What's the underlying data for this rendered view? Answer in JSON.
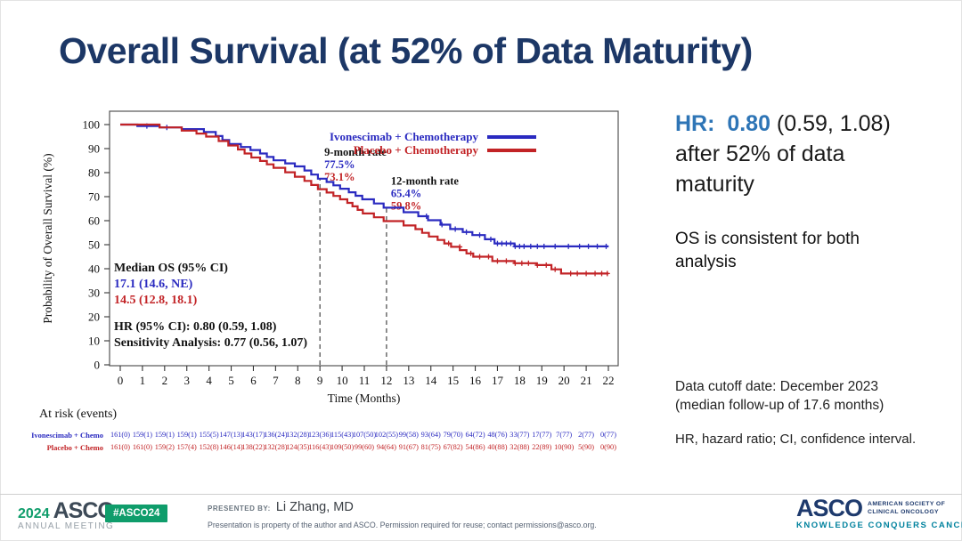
{
  "slide": {
    "title": "Overall Survival (at 52% of Data Maturity)"
  },
  "chart_data": {
    "type": "line",
    "variant": "kaplan-meier-step",
    "xlabel": "Time (Months)",
    "ylabel": "Probability of Overall Survival (%)",
    "xlim": [
      0,
      22
    ],
    "ylim": [
      0,
      100
    ],
    "x_ticks": [
      0,
      1,
      2,
      3,
      4,
      5,
      6,
      7,
      8,
      9,
      10,
      11,
      12,
      13,
      14,
      15,
      16,
      17,
      18,
      19,
      20,
      21,
      22
    ],
    "y_ticks": [
      0,
      10,
      20,
      30,
      40,
      50,
      60,
      70,
      80,
      90,
      100
    ],
    "grid": false,
    "legend_position": "top-right-inside",
    "months": [
      0,
      1,
      2,
      3,
      4,
      5,
      6,
      7,
      8,
      9,
      10,
      11,
      12,
      13,
      14,
      15,
      16,
      17,
      18,
      19,
      20,
      21,
      22
    ],
    "series": [
      {
        "name": "Ivonescimab + Chemotherapy",
        "color": "#2a2ac0",
        "survival_pct": [
          100,
          99.4,
          98.8,
          98.1,
          96.9,
          91.9,
          89.4,
          85.1,
          82.6,
          77.5,
          73.3,
          68.9,
          65.4,
          63.5,
          60.2,
          56.5,
          54.0,
          50.5,
          49.3,
          49.3,
          49.3,
          49.3,
          49.3
        ],
        "censor_times": [
          1.2,
          2.1,
          13.8,
          14.5,
          15.1,
          15.6,
          16.2,
          16.7,
          17.0,
          17.2,
          17.4,
          17.6,
          17.8,
          18.0,
          18.2,
          18.5,
          18.8,
          19.1,
          19.6,
          20.2,
          20.7,
          21.1,
          21.5,
          21.9
        ]
      },
      {
        "name": "Placebo + Chemotherapy",
        "color": "#c22326",
        "survival_pct": [
          100,
          100,
          98.8,
          97.5,
          95.0,
          91.3,
          86.3,
          82.0,
          78.3,
          73.1,
          68.9,
          63.0,
          59.8,
          58.0,
          53.4,
          49.1,
          45.0,
          43.2,
          42.3,
          41.5,
          38.0,
          38.0,
          38.0
        ],
        "censor_times": [
          14.8,
          15.3,
          15.8,
          16.2,
          16.6,
          17.0,
          17.4,
          17.8,
          18.1,
          18.4,
          18.8,
          19.2,
          19.6,
          20.3,
          20.6,
          21.0,
          21.4,
          21.7,
          21.95
        ]
      }
    ],
    "milestones": [
      {
        "x": 9,
        "label": "9-month rate",
        "rates": [
          {
            "text": "77.5%",
            "series": 0
          },
          {
            "text": "73.1%",
            "series": 1
          }
        ]
      },
      {
        "x": 12,
        "label": "12-month rate",
        "rates": [
          {
            "text": "65.4%",
            "series": 0
          },
          {
            "text": "59.8%",
            "series": 1
          }
        ]
      }
    ],
    "stats_lines": [
      {
        "text": "Median OS (95% CI)",
        "color": "#111111"
      },
      {
        "text": "17.1 (14.6, NE)",
        "color": "#2a2ac0"
      },
      {
        "text": "14.5 (12.8, 18.1)",
        "color": "#c22326"
      },
      {
        "text": "",
        "color": "#111111"
      },
      {
        "text": "HR (95% CI): 0.80 (0.59, 1.08)",
        "color": "#111111"
      },
      {
        "text": "Sensitivity Analysis: 0.77 (0.56, 1.07)",
        "color": "#111111"
      }
    ],
    "at_risk": {
      "header": "At risk (events)",
      "rows": [
        {
          "label": "Ivonescimab + Chemo",
          "color": "#2a2ac0",
          "values": [
            "161(0)",
            "159(1)",
            "159(1)",
            "159(1)",
            "155(5)",
            "147(13)",
            "143(17)",
            "136(24)",
            "132(28)",
            "123(36)",
            "115(43)",
            "107(50)",
            "102(55)",
            "99(58)",
            "93(64)",
            "79(70)",
            "64(72)",
            "48(76)",
            "33(77)",
            "17(77)",
            "7(77)",
            "2(77)",
            "0(77)"
          ]
        },
        {
          "label": "Placebo + Chemo",
          "color": "#c22326",
          "values": [
            "161(0)",
            "161(0)",
            "159(2)",
            "157(4)",
            "152(8)",
            "146(14)",
            "138(22)",
            "132(28)",
            "124(35)",
            "116(43)",
            "109(50)",
            "99(60)",
            "94(64)",
            "91(67)",
            "81(75)",
            "67(82)",
            "54(86)",
            "40(88)",
            "32(88)",
            "22(89)",
            "10(90)",
            "5(90)",
            "0(90)"
          ]
        }
      ]
    }
  },
  "right_panel": {
    "headline_lines": [
      {
        "parts": [
          {
            "text": "HR:  0.80",
            "color": "#2e75b6",
            "bold": true
          },
          {
            "text": " (0.59, 1.08)",
            "color": "#1a1a1a",
            "bold": false
          }
        ]
      },
      {
        "parts": [
          {
            "text": "after 52% of data",
            "color": "#1a1a1a",
            "bold": false
          }
        ]
      },
      {
        "parts": [
          {
            "text": "maturity",
            "color": "#1a1a1a",
            "bold": false
          }
        ]
      }
    ],
    "subtext": "OS is consistent for both analysis",
    "cutoff_line1": "Data cutoff date: December 2023",
    "cutoff_line2": "(median follow-up of 17.6 months)",
    "abbrev": "HR, hazard ratio; CI, confidence interval."
  },
  "footer": {
    "year": "2024",
    "org": "ASCO",
    "org_sub": "ANNUAL MEETING",
    "hashtag": "#ASCO24",
    "presented_by_label": "PRESENTED BY:",
    "presenter": "Li Zhang, MD",
    "disclaimer": "Presentation is property of the author and ASCO. Permission required for reuse; contact permissions@asco.org.",
    "logo": {
      "name": "ASCO",
      "sub1": "AMERICAN SOCIETY OF",
      "sub2": "CLINICAL ONCOLOGY",
      "tagline": "KNOWLEDGE CONQUERS CANCER"
    },
    "colors": {
      "green": "#0f9d6b",
      "navy": "#1e3a6d",
      "teal": "#00829e",
      "slate": "#3d4a57"
    }
  }
}
